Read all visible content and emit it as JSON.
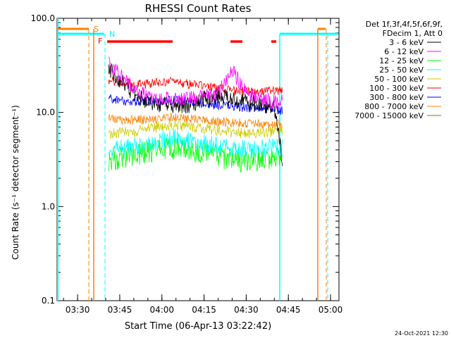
{
  "chart_data": {
    "type": "line",
    "title": "RHESSI Count Rates",
    "xlabel": "Start Time (06-Apr-13 03:22:42)",
    "ylabel": "Count Rate (s⁻¹ detector segment⁻¹)",
    "yscale": "log",
    "ylim": [
      0.1,
      100.0
    ],
    "yticks": [
      "100.0",
      "10.0",
      "1.0",
      "0.1"
    ],
    "xlim": [
      "03:22:42",
      "05:03:00"
    ],
    "xticks": [
      "03:30",
      "03:45",
      "04:00",
      "04:15",
      "04:30",
      "04:45",
      "05:00"
    ],
    "legend_title": [
      "Det 1f,3f,4f,5f,6f,9f,",
      "FDecim 1, Att 0"
    ],
    "legend_position": "right",
    "series": [
      {
        "name": "3 - 6 keV",
        "color": "#000000",
        "x": [
          "03:41",
          "03:45",
          "03:50",
          "03:55",
          "04:00",
          "04:05",
          "04:10",
          "04:15",
          "04:20",
          "04:25",
          "04:30",
          "04:35",
          "04:40",
          "04:43"
        ],
        "values": [
          30,
          22,
          16,
          13,
          12,
          12,
          12,
          14,
          15,
          14,
          13,
          12,
          11,
          3.0
        ]
      },
      {
        "name": "6 - 12 keV",
        "color": "#ff00ff",
        "x": [
          "03:41",
          "03:45",
          "03:50",
          "03:55",
          "04:00",
          "04:05",
          "04:10",
          "04:15",
          "04:20",
          "04:25",
          "04:30",
          "04:35",
          "04:40",
          "04:43"
        ],
        "values": [
          35,
          25,
          18,
          15,
          14,
          14,
          14,
          15,
          16,
          28,
          16,
          14,
          13,
          13
        ]
      },
      {
        "name": "12 - 25 keV",
        "color": "#00ff00",
        "x": [
          "03:41",
          "03:45",
          "03:50",
          "03:55",
          "04:00",
          "04:05",
          "04:10",
          "04:15",
          "04:20",
          "04:25",
          "04:30",
          "04:35",
          "04:40",
          "04:43"
        ],
        "values": [
          3.2,
          3.3,
          3.5,
          3.8,
          4.2,
          4.3,
          4.0,
          3.7,
          3.4,
          3.2,
          3.1,
          3.2,
          3.3,
          3.5
        ]
      },
      {
        "name": "25 - 50 keV",
        "color": "#00ffff",
        "x": [
          "03:41",
          "03:45",
          "03:50",
          "03:55",
          "04:00",
          "04:05",
          "04:10",
          "04:15",
          "04:20",
          "04:25",
          "04:30",
          "04:35",
          "04:40",
          "04:43"
        ],
        "values": [
          4.0,
          4.1,
          4.3,
          4.7,
          5.2,
          5.3,
          5.0,
          4.7,
          4.4,
          4.2,
          4.1,
          4.1,
          4.2,
          4.4
        ]
      },
      {
        "name": "50 - 100 keV",
        "color": "#cccc00",
        "x": [
          "03:41",
          "03:45",
          "03:50",
          "03:55",
          "04:00",
          "04:05",
          "04:10",
          "04:15",
          "04:20",
          "04:25",
          "04:30",
          "04:35",
          "04:40",
          "04:43"
        ],
        "values": [
          6.0,
          6.1,
          6.3,
          6.7,
          7.2,
          7.3,
          7.0,
          6.7,
          6.4,
          6.2,
          6.1,
          6.1,
          6.2,
          6.4
        ]
      },
      {
        "name": "100 - 300 keV",
        "color": "#ff0000",
        "x": [
          "03:41",
          "03:45",
          "03:50",
          "03:55",
          "04:00",
          "04:05",
          "04:10",
          "04:15",
          "04:20",
          "04:25",
          "04:30",
          "04:35",
          "04:40",
          "04:43"
        ],
        "values": [
          22,
          21,
          20,
          20,
          21,
          21,
          20,
          19,
          18,
          17,
          17,
          17,
          17,
          17
        ]
      },
      {
        "name": "300 - 800 keV",
        "color": "#0000ff",
        "x": [
          "03:41",
          "03:45",
          "03:50",
          "03:55",
          "04:00",
          "04:05",
          "04:10",
          "04:15",
          "04:20",
          "04:25",
          "04:30",
          "04:35",
          "04:40",
          "04:43"
        ],
        "values": [
          14,
          13.5,
          13,
          13,
          13.5,
          13.5,
          13,
          12.5,
          12,
          11.5,
          11.2,
          11,
          10.8,
          10.5
        ]
      },
      {
        "name": "800 - 7000 keV",
        "color": "#ff8000",
        "x": [
          "03:41",
          "03:45",
          "03:50",
          "03:55",
          "04:00",
          "04:05",
          "04:10",
          "04:15",
          "04:20",
          "04:25",
          "04:30",
          "04:35",
          "04:40",
          "04:43"
        ],
        "values": [
          8.5,
          8.4,
          8.3,
          8.4,
          8.8,
          8.9,
          8.6,
          8.3,
          8.0,
          7.8,
          7.6,
          7.5,
          7.4,
          7.5
        ]
      },
      {
        "name": "7000 - 15000 keV",
        "color": "#808000",
        "x": [],
        "values": []
      }
    ],
    "markers": {
      "S": {
        "color": "#ff8000"
      },
      "N": {
        "color": "#00ffff"
      },
      "F": {
        "color": "#ff0000"
      }
    },
    "footer": "24-Oct-2021 12:30"
  }
}
